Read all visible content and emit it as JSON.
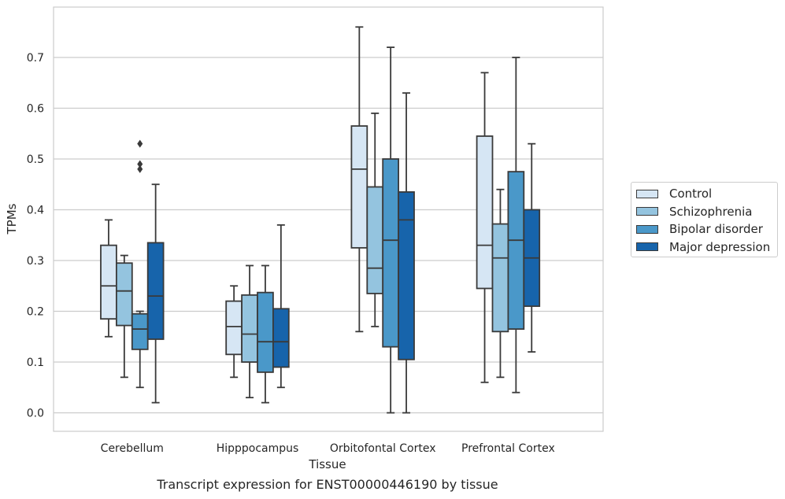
{
  "chart_data": {
    "type": "boxplot",
    "title": "",
    "caption": "Transcript expression for ENST00000446190 by tissue",
    "xlabel": "Tissue",
    "ylabel": "TPMs",
    "ylim": [
      -0.037,
      0.797
    ],
    "yticks": [
      "0.0",
      "0.1",
      "0.2",
      "0.3",
      "0.4",
      "0.5",
      "0.6",
      "0.7"
    ],
    "grid": "horizontal",
    "legend_position": "right",
    "categories": [
      "Cerebellum",
      "Hipppocampus",
      "Orbitofontal Cortex",
      "Prefrontal Cortex"
    ],
    "series": [
      {
        "name": "Control",
        "color": "#d6e6f4",
        "boxes": [
          {
            "whislo": 0.15,
            "q1": 0.185,
            "med": 0.25,
            "q3": 0.33,
            "whishi": 0.38,
            "fliers": []
          },
          {
            "whislo": 0.07,
            "q1": 0.115,
            "med": 0.17,
            "q3": 0.22,
            "whishi": 0.25,
            "fliers": []
          },
          {
            "whislo": 0.16,
            "q1": 0.325,
            "med": 0.48,
            "q3": 0.565,
            "whishi": 0.76,
            "fliers": []
          },
          {
            "whislo": 0.06,
            "q1": 0.245,
            "med": 0.33,
            "q3": 0.545,
            "whishi": 0.67,
            "fliers": []
          }
        ]
      },
      {
        "name": "Schizophrenia",
        "color": "#94c4df",
        "boxes": [
          {
            "whislo": 0.07,
            "q1": 0.172,
            "med": 0.24,
            "q3": 0.295,
            "whishi": 0.31,
            "fliers": []
          },
          {
            "whislo": 0.03,
            "q1": 0.1,
            "med": 0.155,
            "q3": 0.232,
            "whishi": 0.29,
            "fliers": []
          },
          {
            "whislo": 0.17,
            "q1": 0.235,
            "med": 0.285,
            "q3": 0.445,
            "whishi": 0.59,
            "fliers": []
          },
          {
            "whislo": 0.07,
            "q1": 0.16,
            "med": 0.305,
            "q3": 0.372,
            "whishi": 0.44,
            "fliers": []
          }
        ]
      },
      {
        "name": "Bipolar disorder",
        "color": "#4a98c9",
        "boxes": [
          {
            "whislo": 0.05,
            "q1": 0.125,
            "med": 0.165,
            "q3": 0.195,
            "whishi": 0.2,
            "fliers": [
              0.48,
              0.49,
              0.53
            ]
          },
          {
            "whislo": 0.02,
            "q1": 0.08,
            "med": 0.14,
            "q3": 0.237,
            "whishi": 0.29,
            "fliers": []
          },
          {
            "whislo": 0.0,
            "q1": 0.13,
            "med": 0.34,
            "q3": 0.5,
            "whishi": 0.72,
            "fliers": []
          },
          {
            "whislo": 0.04,
            "q1": 0.165,
            "med": 0.34,
            "q3": 0.475,
            "whishi": 0.7,
            "fliers": []
          }
        ]
      },
      {
        "name": "Major depression",
        "color": "#1764ab",
        "boxes": [
          {
            "whislo": 0.02,
            "q1": 0.145,
            "med": 0.23,
            "q3": 0.335,
            "whishi": 0.45,
            "fliers": []
          },
          {
            "whislo": 0.05,
            "q1": 0.09,
            "med": 0.14,
            "q3": 0.205,
            "whishi": 0.37,
            "fliers": []
          },
          {
            "whislo": 0.0,
            "q1": 0.105,
            "med": 0.38,
            "q3": 0.435,
            "whishi": 0.63,
            "fliers": []
          },
          {
            "whislo": 0.12,
            "q1": 0.21,
            "med": 0.305,
            "q3": 0.4,
            "whishi": 0.53,
            "fliers": []
          }
        ]
      }
    ]
  }
}
